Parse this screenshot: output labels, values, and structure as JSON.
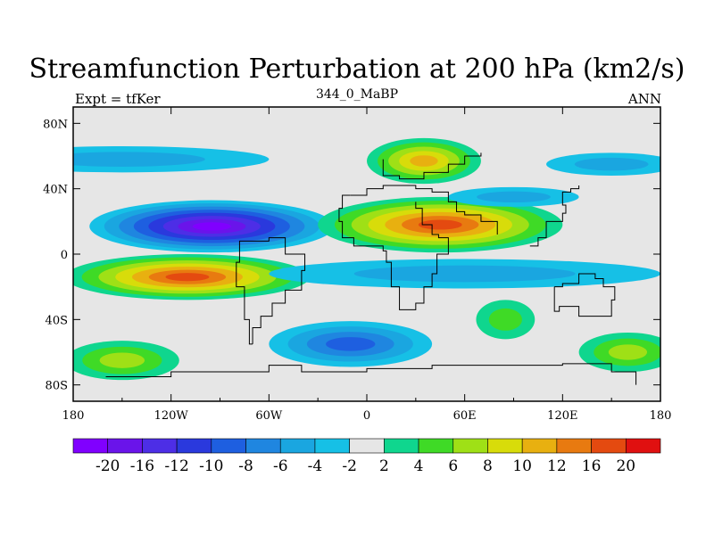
{
  "header": {
    "title": "Streamfunction Perturbation at 200 hPa (km2/s)",
    "left": "Expt = tfKer",
    "center": "344_0_MaBP",
    "right": "ANN"
  },
  "chart_data": {
    "type": "heatmap",
    "title": "Streamfunction Perturbation at 200 hPa (km2/s)",
    "subtitle_left": "Expt = tfKer",
    "subtitle_center": "344_0_MaBP",
    "subtitle_right": "ANN",
    "x_range": [
      -180,
      180
    ],
    "y_range": [
      -90,
      90
    ],
    "x_ticks": [
      {
        "value": -180,
        "label": "180"
      },
      {
        "value": -120,
        "label": "120W"
      },
      {
        "value": -60,
        "label": "60W"
      },
      {
        "value": 0,
        "label": "0"
      },
      {
        "value": 60,
        "label": "60E"
      },
      {
        "value": 120,
        "label": "120E"
      },
      {
        "value": 180,
        "label": "180"
      }
    ],
    "y_ticks": [
      {
        "value": 80,
        "label": "80N"
      },
      {
        "value": 40,
        "label": "40N"
      },
      {
        "value": 0,
        "label": "0"
      },
      {
        "value": -40,
        "label": "40S"
      },
      {
        "value": -80,
        "label": "80S"
      }
    ],
    "colorbar": {
      "levels": [
        -20,
        -16,
        -12,
        -10,
        -8,
        -6,
        -4,
        -2,
        2,
        4,
        6,
        8,
        10,
        12,
        16,
        20
      ],
      "labels": [
        "-20",
        "-16",
        "-12",
        "-10",
        "-8",
        "-6",
        "-4",
        "-2",
        "2",
        "4",
        "6",
        "8",
        "10",
        "12",
        "16",
        "20"
      ],
      "colors": [
        "#8000ff",
        "#6a14ea",
        "#4d2ee6",
        "#2a39dd",
        "#1e5fe0",
        "#1f86e0",
        "#1aa6e0",
        "#16c0e6",
        "#e6e6e6",
        "#0fd68e",
        "#3fda26",
        "#9fe016",
        "#d8dc0a",
        "#e8b010",
        "#e87a10",
        "#e44a10",
        "#e01010"
      ]
    },
    "blobs": [
      {
        "lon": -95,
        "lat": 17,
        "rx": 75,
        "ry": 16,
        "value": -21
      },
      {
        "lon": -110,
        "lat": -14,
        "rx": 75,
        "ry": 14,
        "value": 17
      },
      {
        "lon": 35,
        "lat": 57,
        "rx": 35,
        "ry": 14,
        "value": 11
      },
      {
        "lon": 45,
        "lat": 18,
        "rx": 75,
        "ry": 17,
        "value": 18
      },
      {
        "lon": -150,
        "lat": 58,
        "rx": 90,
        "ry": 8,
        "value": -5
      },
      {
        "lon": 150,
        "lat": 55,
        "rx": 40,
        "ry": 7,
        "value": -4
      },
      {
        "lon": 60,
        "lat": -12,
        "rx": 120,
        "ry": 9,
        "value": -5
      },
      {
        "lon": -10,
        "lat": -55,
        "rx": 50,
        "ry": 14,
        "value": -8
      },
      {
        "lon": 85,
        "lat": -40,
        "rx": 18,
        "ry": 12,
        "value": 5
      },
      {
        "lon": -150,
        "lat": -65,
        "rx": 35,
        "ry": 12,
        "value": 7
      },
      {
        "lon": 160,
        "lat": -60,
        "rx": 30,
        "ry": 12,
        "value": 7
      },
      {
        "lon": 90,
        "lat": 35,
        "rx": 40,
        "ry": 6,
        "value": -4
      }
    ],
    "coastline_segments": [
      [
        [
          -10,
          36
        ],
        [
          0,
          40
        ],
        [
          10,
          42
        ],
        [
          20,
          42
        ],
        [
          30,
          40
        ],
        [
          40,
          38
        ],
        [
          50,
          32
        ],
        [
          55,
          26
        ],
        [
          60,
          24
        ],
        [
          70,
          20
        ],
        [
          80,
          12
        ]
      ],
      [
        [
          -10,
          36
        ],
        [
          -15,
          28
        ],
        [
          -17,
          20
        ],
        [
          -15,
          10
        ],
        [
          -8,
          5
        ],
        [
          5,
          5
        ],
        [
          10,
          2
        ],
        [
          12,
          -5
        ],
        [
          15,
          -20
        ],
        [
          20,
          -34
        ],
        [
          30,
          -30
        ],
        [
          35,
          -20
        ],
        [
          40,
          -12
        ],
        [
          43,
          0
        ],
        [
          50,
          10
        ],
        [
          44,
          12
        ],
        [
          40,
          18
        ],
        [
          34,
          28
        ],
        [
          30,
          32
        ]
      ],
      [
        [
          10,
          58
        ],
        [
          10,
          48
        ],
        [
          20,
          46
        ],
        [
          30,
          46
        ],
        [
          35,
          50
        ],
        [
          50,
          55
        ],
        [
          60,
          60
        ],
        [
          70,
          62
        ]
      ],
      [
        [
          -70,
          -55
        ],
        [
          -72,
          -40
        ],
        [
          -75,
          -20
        ],
        [
          -80,
          -5
        ],
        [
          -78,
          8
        ],
        [
          -60,
          10
        ],
        [
          -50,
          0
        ],
        [
          -38,
          -10
        ],
        [
          -40,
          -22
        ],
        [
          -50,
          -30
        ],
        [
          -58,
          -38
        ],
        [
          -65,
          -45
        ],
        [
          -70,
          -55
        ]
      ],
      [
        [
          -160,
          -75
        ],
        [
          -120,
          -72
        ],
        [
          -80,
          -72
        ],
        [
          -60,
          -68
        ],
        [
          -40,
          -72
        ],
        [
          0,
          -70
        ],
        [
          40,
          -68
        ],
        [
          80,
          -68
        ],
        [
          120,
          -67
        ],
        [
          150,
          -72
        ],
        [
          165,
          -80
        ]
      ],
      [
        [
          115,
          -20
        ],
        [
          120,
          -18
        ],
        [
          130,
          -12
        ],
        [
          140,
          -15
        ],
        [
          145,
          -20
        ],
        [
          152,
          -28
        ],
        [
          150,
          -38
        ],
        [
          140,
          -38
        ],
        [
          130,
          -32
        ],
        [
          118,
          -35
        ],
        [
          115,
          -28
        ],
        [
          115,
          -20
        ]
      ],
      [
        [
          100,
          5
        ],
        [
          105,
          10
        ],
        [
          110,
          20
        ],
        [
          120,
          25
        ],
        [
          122,
          30
        ],
        [
          120,
          38
        ],
        [
          125,
          40
        ],
        [
          130,
          42
        ]
      ]
    ]
  }
}
